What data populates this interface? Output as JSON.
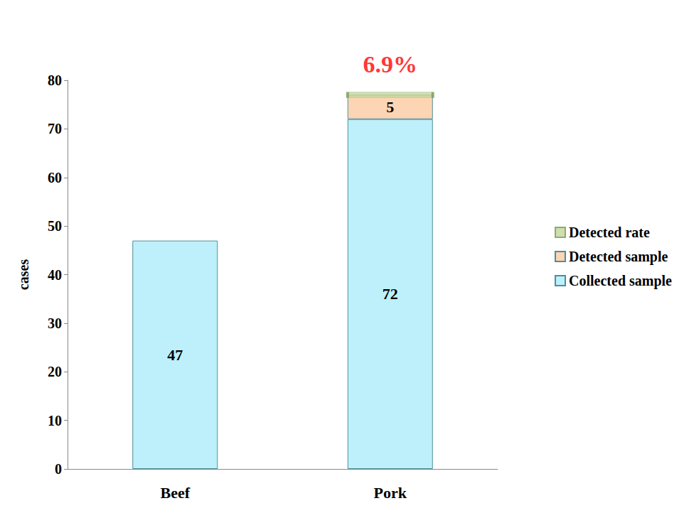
{
  "chart_data": {
    "type": "bar",
    "stacked": true,
    "data_labels": true,
    "grid": false,
    "legend": "right",
    "y_label": "cases",
    "categories": [
      "Beef",
      "Pork"
    ],
    "ylim": [
      0,
      80
    ],
    "yticks": [
      0,
      10,
      20,
      30,
      40,
      50,
      60,
      70,
      80
    ],
    "series": [
      {
        "name": "Collected sample",
        "color": "#bdf0fa",
        "values": [
          47,
          72
        ]
      },
      {
        "name": "Detected sample",
        "color": "#fcd5b4",
        "values": [
          null,
          5
        ]
      },
      {
        "name": "Detected rate",
        "color": "#c3d69b",
        "type": "scatter",
        "values": [
          null,
          6.9
        ],
        "value_labels": [
          null,
          "6.9%"
        ]
      }
    ]
  }
}
